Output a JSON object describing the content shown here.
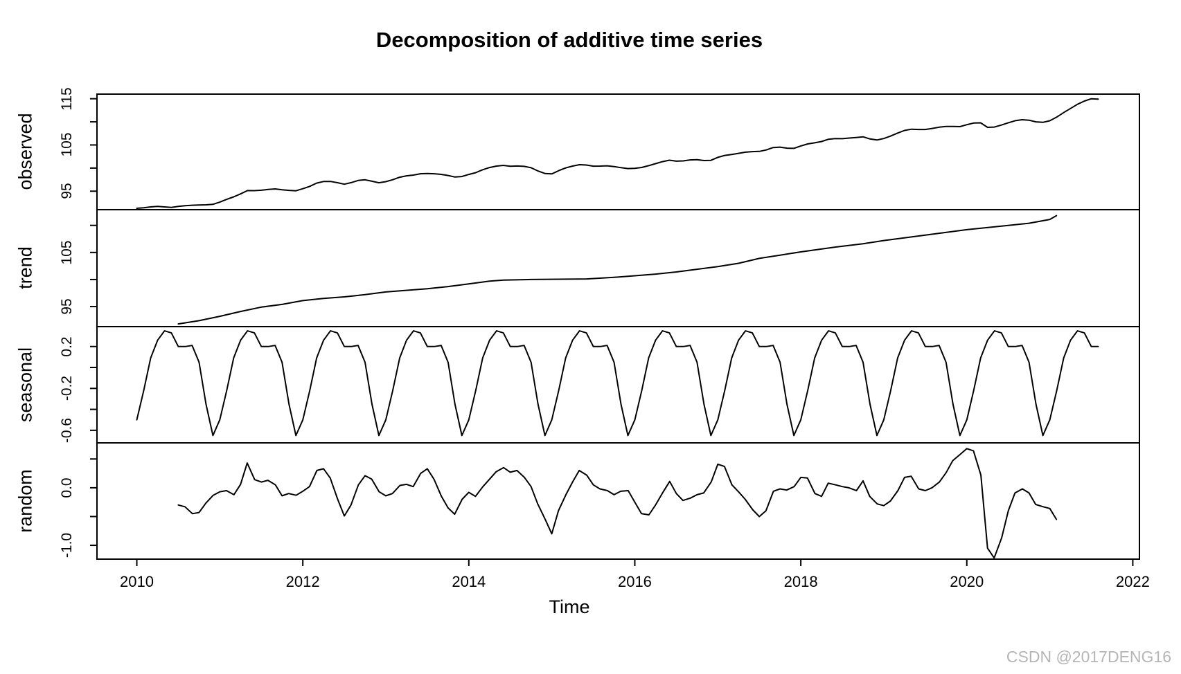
{
  "title": "Decomposition of additive time series",
  "xlabel": "Time",
  "watermark": {
    "text": "CSDN @2017DENG16",
    "color": "#b5b5b5"
  },
  "colors": {
    "line": "#000000",
    "axis": "#000000",
    "background": "#ffffff"
  },
  "chart_data": {
    "type": "line",
    "title": "Decomposition of additive time series",
    "xlabel": "Time",
    "grid": false,
    "legend": "none",
    "x_range_years": [
      2010.0,
      2021.583
    ],
    "xlim": [
      2009.52,
      2022.08
    ],
    "x_ticks": [
      {
        "v": 2010,
        "label": "2010"
      },
      {
        "v": 2012,
        "label": "2012"
      },
      {
        "v": 2014,
        "label": "2014"
      },
      {
        "v": 2016,
        "label": "2016"
      },
      {
        "v": 2018,
        "label": "2018"
      },
      {
        "v": 2020,
        "label": "2020"
      },
      {
        "v": 2022,
        "label": "2022"
      }
    ],
    "panels": [
      {
        "id": "observed",
        "ylabel": "observed",
        "ylim": [
          91.0,
          116.0
        ],
        "ticks": [
          {
            "v": 95,
            "label": "95"
          },
          {
            "v": 100
          },
          {
            "v": 105,
            "label": "105"
          },
          {
            "v": 110
          },
          {
            "v": 115,
            "label": "115"
          }
        ]
      },
      {
        "id": "trend",
        "ylabel": "trend",
        "ylim": [
          91.3,
          112.9
        ],
        "ticks": [
          {
            "v": 95,
            "label": "95"
          },
          {
            "v": 100
          },
          {
            "v": 105,
            "label": "105"
          },
          {
            "v": 110
          }
        ]
      },
      {
        "id": "seasonal",
        "ylabel": "seasonal",
        "ylim": [
          -0.72,
          0.39
        ],
        "ticks": [
          {
            "v": -0.6,
            "label": "-0.6"
          },
          {
            "v": -0.4
          },
          {
            "v": -0.2,
            "label": "-0.2"
          },
          {
            "v": 0
          },
          {
            "v": 0.2,
            "label": "0.2"
          }
        ]
      },
      {
        "id": "random",
        "ylabel": "random",
        "ylim": [
          -1.24,
          0.78
        ],
        "ticks": [
          {
            "v": -1,
            "label": "-1.0"
          },
          {
            "v": -0.5
          },
          {
            "v": 0,
            "label": "0.0"
          },
          {
            "v": 0.5
          }
        ]
      }
    ],
    "series": {
      "seasonal_pattern_monthly": [
        -0.5,
        -0.22,
        0.09,
        0.26,
        0.35,
        0.33,
        0.2,
        0.2,
        0.21,
        0.05,
        -0.35,
        -0.65
      ],
      "seasonal_months_start": 2010.0,
      "seasonal_months_count": 140,
      "trend_points": [
        [
          2010.5,
          91.8
        ],
        [
          2010.75,
          92.4
        ],
        [
          2011,
          93.2
        ],
        [
          2011.25,
          94.1
        ],
        [
          2011.5,
          94.9
        ],
        [
          2011.75,
          95.4
        ],
        [
          2012,
          96.1
        ],
        [
          2012.25,
          96.5
        ],
        [
          2012.5,
          96.8
        ],
        [
          2012.75,
          97.2
        ],
        [
          2013,
          97.7
        ],
        [
          2013.5,
          98.3
        ],
        [
          2013.75,
          98.7
        ],
        [
          2014,
          99.2
        ],
        [
          2014.25,
          99.7
        ],
        [
          2014.42,
          99.9
        ],
        [
          2014.75,
          100.0
        ],
        [
          2015.42,
          100.1
        ],
        [
          2015.75,
          100.4
        ],
        [
          2016,
          100.7
        ],
        [
          2016.25,
          101.0
        ],
        [
          2016.5,
          101.4
        ],
        [
          2016.75,
          101.9
        ],
        [
          2017,
          102.4
        ],
        [
          2017.25,
          103.0
        ],
        [
          2017.5,
          103.9
        ],
        [
          2017.75,
          104.5
        ],
        [
          2018,
          105.1
        ],
        [
          2018.42,
          106.0
        ],
        [
          2018.75,
          106.6
        ],
        [
          2019,
          107.2
        ],
        [
          2019.5,
          108.2
        ],
        [
          2020,
          109.2
        ],
        [
          2020.5,
          110.0
        ],
        [
          2020.75,
          110.4
        ],
        [
          2021,
          111.1
        ],
        [
          2021.08,
          111.8
        ]
      ],
      "random_points": [
        [
          2010.5,
          -0.3
        ],
        [
          2010.58,
          -0.33
        ],
        [
          2010.67,
          -0.45
        ],
        [
          2010.75,
          -0.43
        ],
        [
          2010.83,
          -0.27
        ],
        [
          2010.92,
          -0.13
        ],
        [
          2011.0,
          -0.07
        ],
        [
          2011.08,
          -0.05
        ],
        [
          2011.17,
          -0.12
        ],
        [
          2011.25,
          0.06
        ],
        [
          2011.33,
          0.43
        ],
        [
          2011.42,
          0.14
        ],
        [
          2011.5,
          0.1
        ],
        [
          2011.58,
          0.13
        ],
        [
          2011.67,
          0.05
        ],
        [
          2011.75,
          -0.14
        ],
        [
          2011.83,
          -0.1
        ],
        [
          2011.92,
          -0.13
        ],
        [
          2012.0,
          -0.06
        ],
        [
          2012.08,
          0.02
        ],
        [
          2012.17,
          0.3
        ],
        [
          2012.25,
          0.33
        ],
        [
          2012.33,
          0.17
        ],
        [
          2012.42,
          -0.2
        ],
        [
          2012.5,
          -0.49
        ],
        [
          2012.58,
          -0.3
        ],
        [
          2012.67,
          0.05
        ],
        [
          2012.75,
          0.21
        ],
        [
          2012.83,
          0.15
        ],
        [
          2012.92,
          -0.07
        ],
        [
          2013.0,
          -0.14
        ],
        [
          2013.08,
          -0.1
        ],
        [
          2013.17,
          0.04
        ],
        [
          2013.25,
          0.06
        ],
        [
          2013.33,
          0.02
        ],
        [
          2013.42,
          0.25
        ],
        [
          2013.5,
          0.33
        ],
        [
          2013.58,
          0.15
        ],
        [
          2013.67,
          -0.15
        ],
        [
          2013.75,
          -0.35
        ],
        [
          2013.83,
          -0.46
        ],
        [
          2013.92,
          -0.2
        ],
        [
          2014.0,
          -0.08
        ],
        [
          2014.08,
          -0.15
        ],
        [
          2014.17,
          0.02
        ],
        [
          2014.25,
          0.15
        ],
        [
          2014.33,
          0.28
        ],
        [
          2014.42,
          0.35
        ],
        [
          2014.5,
          0.27
        ],
        [
          2014.58,
          0.3
        ],
        [
          2014.67,
          0.18
        ],
        [
          2014.75,
          0.02
        ],
        [
          2014.83,
          -0.28
        ],
        [
          2014.92,
          -0.55
        ],
        [
          2015.0,
          -0.8
        ],
        [
          2015.08,
          -0.4
        ],
        [
          2015.17,
          -0.12
        ],
        [
          2015.25,
          0.1
        ],
        [
          2015.33,
          0.3
        ],
        [
          2015.42,
          0.22
        ],
        [
          2015.5,
          0.05
        ],
        [
          2015.58,
          -0.02
        ],
        [
          2015.67,
          -0.05
        ],
        [
          2015.75,
          -0.12
        ],
        [
          2015.83,
          -0.06
        ],
        [
          2015.92,
          -0.05
        ],
        [
          2016.0,
          -0.25
        ],
        [
          2016.08,
          -0.45
        ],
        [
          2016.17,
          -0.47
        ],
        [
          2016.25,
          -0.3
        ],
        [
          2016.33,
          -0.1
        ],
        [
          2016.42,
          0.11
        ],
        [
          2016.5,
          -0.1
        ],
        [
          2016.58,
          -0.22
        ],
        [
          2016.67,
          -0.18
        ],
        [
          2016.75,
          -0.12
        ],
        [
          2016.83,
          -0.09
        ],
        [
          2016.92,
          0.1
        ],
        [
          2017.0,
          0.41
        ],
        [
          2017.08,
          0.37
        ],
        [
          2017.17,
          0.05
        ],
        [
          2017.25,
          -0.07
        ],
        [
          2017.33,
          -0.2
        ],
        [
          2017.42,
          -0.38
        ],
        [
          2017.5,
          -0.5
        ],
        [
          2017.58,
          -0.4
        ],
        [
          2017.67,
          -0.06
        ],
        [
          2017.75,
          -0.02
        ],
        [
          2017.83,
          -0.04
        ],
        [
          2017.92,
          0.02
        ],
        [
          2018.0,
          0.18
        ],
        [
          2018.08,
          0.17
        ],
        [
          2018.17,
          -0.1
        ],
        [
          2018.25,
          -0.15
        ],
        [
          2018.33,
          0.08
        ],
        [
          2018.42,
          0.05
        ],
        [
          2018.5,
          0.02
        ],
        [
          2018.58,
          0.0
        ],
        [
          2018.67,
          -0.05
        ],
        [
          2018.75,
          0.12
        ],
        [
          2018.83,
          -0.15
        ],
        [
          2018.92,
          -0.28
        ],
        [
          2019.0,
          -0.31
        ],
        [
          2019.08,
          -0.23
        ],
        [
          2019.17,
          -0.05
        ],
        [
          2019.25,
          0.18
        ],
        [
          2019.33,
          0.2
        ],
        [
          2019.42,
          -0.02
        ],
        [
          2019.5,
          -0.05
        ],
        [
          2019.58,
          0.0
        ],
        [
          2019.67,
          0.1
        ],
        [
          2019.75,
          0.26
        ],
        [
          2019.83,
          0.47
        ],
        [
          2019.92,
          0.58
        ],
        [
          2020.0,
          0.68
        ],
        [
          2020.08,
          0.64
        ],
        [
          2020.17,
          0.22
        ],
        [
          2020.25,
          -1.05
        ],
        [
          2020.33,
          -1.22
        ],
        [
          2020.42,
          -0.87
        ],
        [
          2020.5,
          -0.4
        ],
        [
          2020.58,
          -0.09
        ],
        [
          2020.67,
          -0.02
        ],
        [
          2020.75,
          -0.09
        ],
        [
          2020.83,
          -0.29
        ],
        [
          2020.92,
          -0.33
        ],
        [
          2021.0,
          -0.36
        ],
        [
          2021.08,
          -0.55
        ]
      ],
      "observed_rule": "observed = trend + seasonal + random (monthly, 2010.5 to 2021.083)",
      "observed_head": {
        "t0": 2010.0,
        "values": [
          91.3,
          91.4,
          91.6,
          91.7,
          91.6,
          91.5
        ]
      },
      "observed_tail": {
        "t0": 2021.167,
        "values": [
          112.0,
          112.9,
          113.8,
          114.5,
          115.0,
          114.9
        ]
      }
    }
  }
}
